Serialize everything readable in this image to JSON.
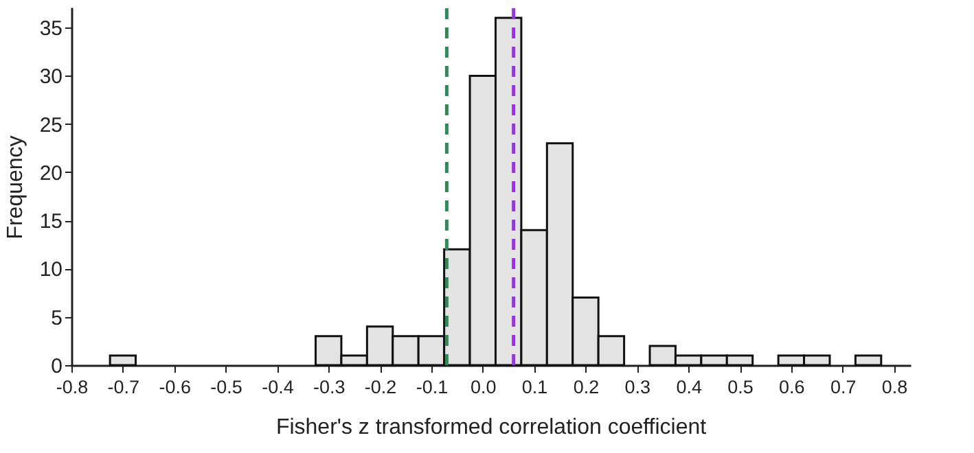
{
  "chart_data": {
    "type": "histogram",
    "xlabel": "Fisher's z transformed correlation coefficient",
    "ylabel": "Frequency",
    "bins": [
      -0.725,
      -0.675,
      -0.625,
      -0.575,
      -0.525,
      -0.475,
      -0.425,
      -0.375,
      -0.325,
      -0.275,
      -0.225,
      -0.175,
      -0.125,
      -0.075,
      -0.025,
      0.025,
      0.075,
      0.125,
      0.175,
      0.225,
      0.275,
      0.325,
      0.375,
      0.425,
      0.475,
      0.525,
      0.575,
      0.625,
      0.675,
      0.725,
      0.775
    ],
    "values": [
      1,
      0,
      0,
      0,
      0,
      0,
      0,
      0,
      3,
      1,
      4,
      3,
      3,
      12,
      30,
      36,
      14,
      23,
      7,
      3,
      0,
      2,
      1,
      1,
      1,
      0,
      1,
      1,
      0,
      1
    ],
    "color": "#e3e3e3",
    "xlim": [
      -0.8,
      0.83
    ],
    "xticks": [
      -0.8,
      -0.7,
      -0.6,
      -0.5,
      -0.4,
      -0.3,
      -0.2,
      -0.1,
      {
        "value": 0,
        "label": "0.0"
      },
      0.1,
      0.2,
      0.3,
      0.4,
      0.5,
      0.6,
      0.7,
      0.8
    ],
    "ylim": [
      0,
      37
    ],
    "yticks": [
      0,
      5,
      10,
      15,
      20,
      25,
      30,
      35
    ],
    "ref_lines": [
      {
        "axis": "x",
        "value": -0.07,
        "color": "#2e8b57",
        "line_style": "dashed"
      },
      {
        "axis": "x",
        "value": 0.06,
        "color": "#9b30f0",
        "line_style": "dashed"
      }
    ],
    "grid": false
  }
}
